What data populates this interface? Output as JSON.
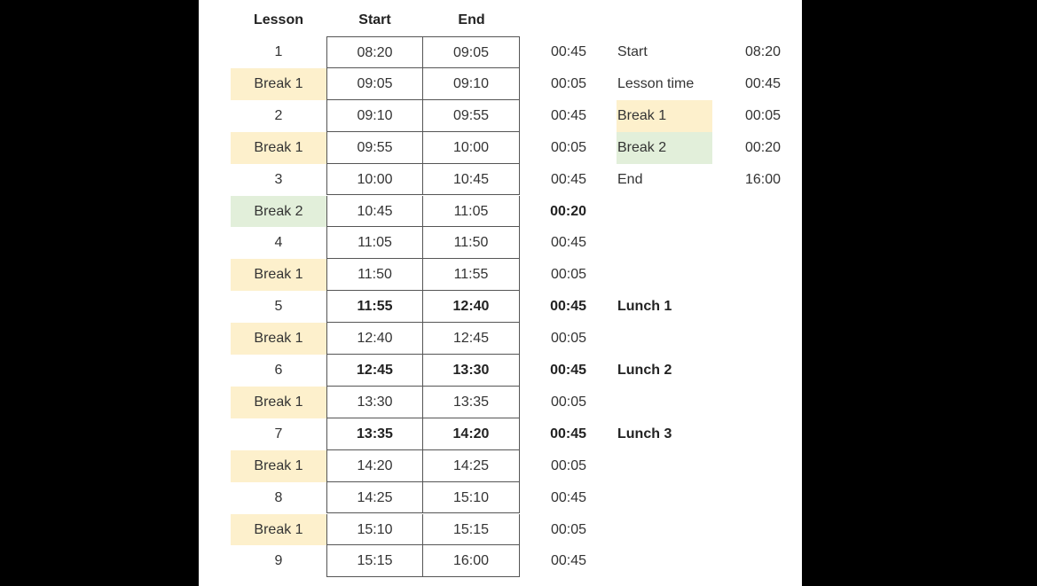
{
  "headers": {
    "lesson": "Lesson",
    "start": "Start",
    "end": "End"
  },
  "colors": {
    "break1": "#fdf0cc",
    "break2": "#e2efda"
  },
  "rows": [
    {
      "lesson": "1",
      "start": "08:20",
      "end": "09:05",
      "duration": "00:45",
      "type": "lesson"
    },
    {
      "lesson": "Break 1",
      "start": "09:05",
      "end": "09:10",
      "duration": "00:05",
      "type": "break1"
    },
    {
      "lesson": "2",
      "start": "09:10",
      "end": "09:55",
      "duration": "00:45",
      "type": "lesson"
    },
    {
      "lesson": "Break 1",
      "start": "09:55",
      "end": "10:00",
      "duration": "00:05",
      "type": "break1"
    },
    {
      "lesson": "3",
      "start": "10:00",
      "end": "10:45",
      "duration": "00:45",
      "type": "lesson"
    },
    {
      "lesson": "Break 2",
      "start": "10:45",
      "end": "11:05",
      "duration": "00:20",
      "type": "break2",
      "bold_duration": true
    },
    {
      "lesson": "4",
      "start": "11:05",
      "end": "11:50",
      "duration": "00:45",
      "type": "lesson"
    },
    {
      "lesson": "Break 1",
      "start": "11:50",
      "end": "11:55",
      "duration": "00:05",
      "type": "break1"
    },
    {
      "lesson": "5",
      "start": "11:55",
      "end": "12:40",
      "duration": "00:45",
      "type": "lesson",
      "bold": true,
      "note": "Lunch 1"
    },
    {
      "lesson": "Break 1",
      "start": "12:40",
      "end": "12:45",
      "duration": "00:05",
      "type": "break1"
    },
    {
      "lesson": "6",
      "start": "12:45",
      "end": "13:30",
      "duration": "00:45",
      "type": "lesson",
      "bold": true,
      "note": "Lunch 2"
    },
    {
      "lesson": "Break 1",
      "start": "13:30",
      "end": "13:35",
      "duration": "00:05",
      "type": "break1"
    },
    {
      "lesson": "7",
      "start": "13:35",
      "end": "14:20",
      "duration": "00:45",
      "type": "lesson",
      "bold": true,
      "note": "Lunch 3"
    },
    {
      "lesson": "Break 1",
      "start": "14:20",
      "end": "14:25",
      "duration": "00:05",
      "type": "break1"
    },
    {
      "lesson": "8",
      "start": "14:25",
      "end": "15:10",
      "duration": "00:45",
      "type": "lesson"
    },
    {
      "lesson": "Break 1",
      "start": "15:10",
      "end": "15:15",
      "duration": "00:05",
      "type": "break1"
    },
    {
      "lesson": "9",
      "start": "15:15",
      "end": "16:00",
      "duration": "00:45",
      "type": "lesson"
    }
  ],
  "settings": [
    {
      "label": "Start",
      "value": "08:20",
      "type": "plain"
    },
    {
      "label": "Lesson time",
      "value": "00:45",
      "type": "plain"
    },
    {
      "label": "Break 1",
      "value": "00:05",
      "type": "break1"
    },
    {
      "label": "Break 2",
      "value": "00:20",
      "type": "break2"
    },
    {
      "label": "End",
      "value": "16:00",
      "type": "plain"
    }
  ]
}
